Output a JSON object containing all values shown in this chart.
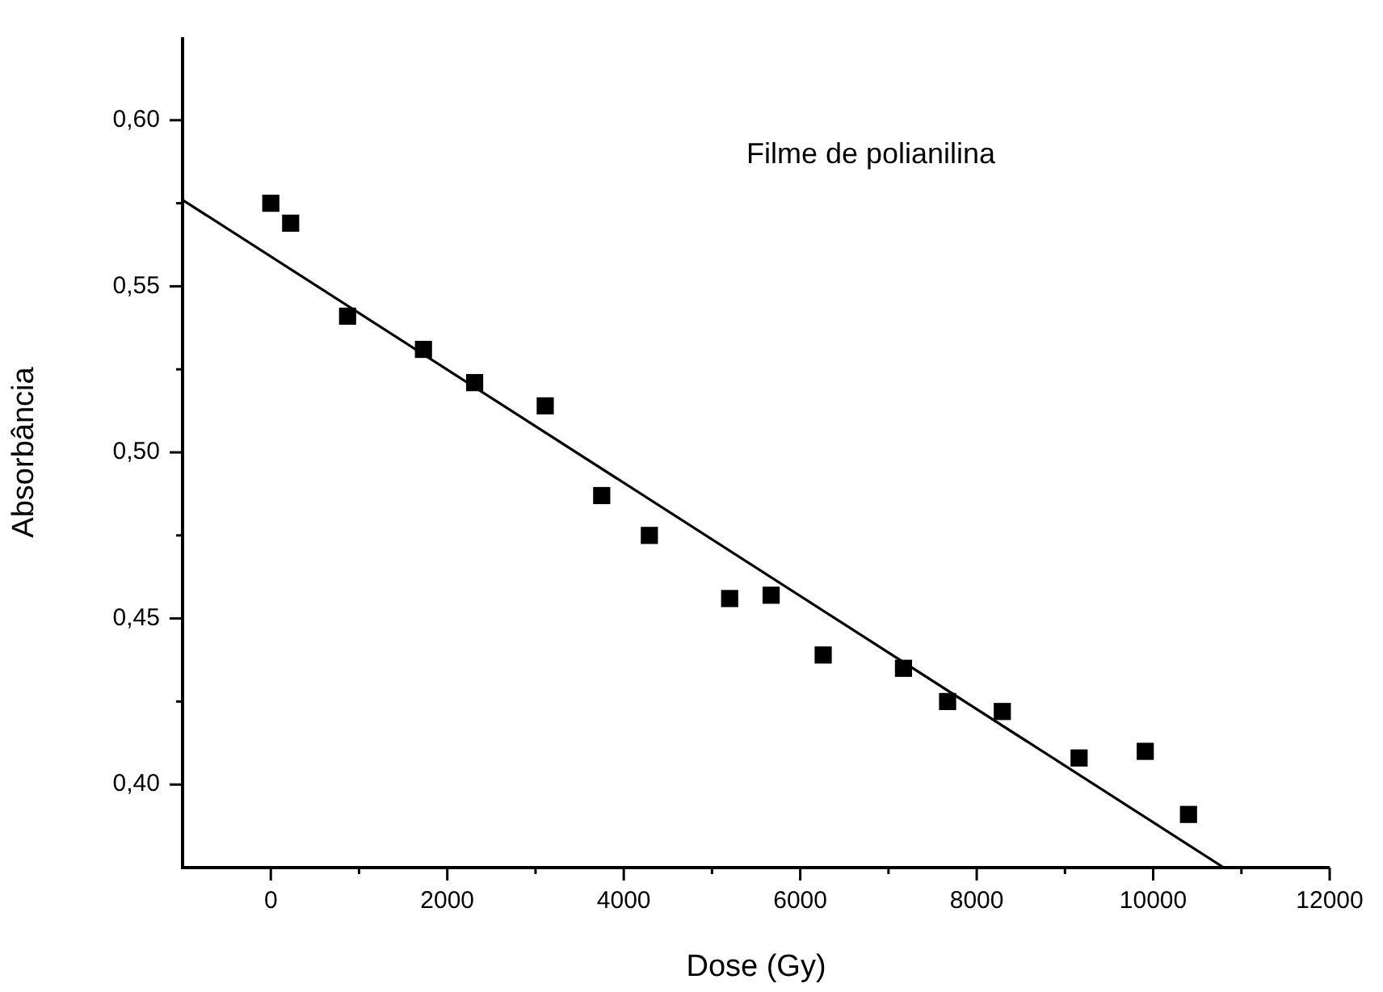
{
  "chart_data": {
    "type": "scatter",
    "title": "Filme de polianilina",
    "xlabel": "Dose (Gy)",
    "ylabel": "Absorbância",
    "marker": "square",
    "xlim": [
      -1000,
      12000
    ],
    "xticks": [
      0,
      {
        "value": 1000,
        "label": null
      },
      2000,
      {
        "value": 3000,
        "label": null
      },
      4000,
      {
        "value": 5000,
        "label": null
      },
      6000,
      {
        "value": 7000,
        "label": null
      },
      8000,
      {
        "value": 9000,
        "label": null
      },
      10000,
      {
        "value": 11000,
        "label": null
      },
      12000
    ],
    "ylim": [
      0.375,
      0.625
    ],
    "yticks": [
      {
        "value": 0.4,
        "label": "0,40"
      },
      {
        "value": 0.425,
        "label": null
      },
      {
        "value": 0.45,
        "label": "0,45"
      },
      {
        "value": 0.475,
        "label": null
      },
      {
        "value": 0.5,
        "label": "0,50"
      },
      {
        "value": 0.525,
        "label": null
      },
      {
        "value": 0.55,
        "label": "0,55"
      },
      {
        "value": 0.575,
        "label": null
      },
      {
        "value": 0.6,
        "label": "0,60"
      }
    ],
    "series": [
      {
        "type": "scatter",
        "color": "#000000",
        "x": [
          0,
          225,
          870,
          1730,
          2310,
          3110,
          3750,
          4290,
          5200,
          5670,
          6260,
          7170,
          7670,
          8290,
          9160,
          9910,
          10400
        ],
        "values": [
          0.575,
          0.569,
          0.541,
          0.531,
          0.521,
          0.514,
          0.487,
          0.475,
          0.456,
          0.457,
          0.439,
          0.435,
          0.425,
          0.422,
          0.408,
          0.41,
          0.391
        ]
      },
      {
        "type": "line",
        "color": "#000000",
        "marker": "none",
        "line_style": "solid",
        "x": [
          -1000,
          10800
        ],
        "values": [
          0.576,
          0.375
        ]
      }
    ]
  }
}
